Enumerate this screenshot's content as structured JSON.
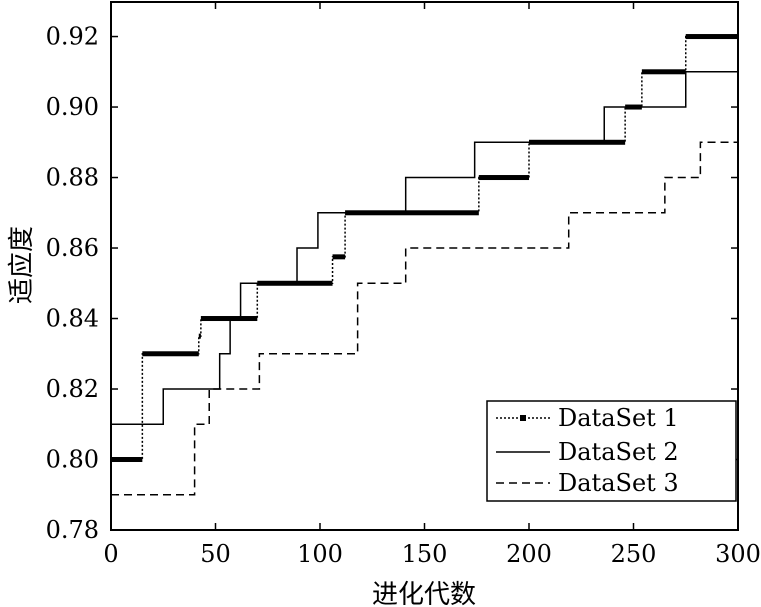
{
  "chart_data": {
    "type": "line",
    "title": "",
    "xlabel": "进化代数",
    "ylabel": "适应度",
    "xlim": [
      0,
      300
    ],
    "ylim": [
      0.78,
      0.93
    ],
    "xticks": [
      0,
      50,
      100,
      150,
      200,
      250,
      300
    ],
    "xtick_labels": [
      "0",
      "50",
      "100",
      "150",
      "200",
      "250",
      "300"
    ],
    "yticks": [
      0.78,
      0.8,
      0.82,
      0.84,
      0.86,
      0.88,
      0.9,
      0.92
    ],
    "ytick_labels": [
      "0.78",
      "0.80",
      "0.82",
      "0.84",
      "0.86",
      "0.88",
      "0.90",
      "0.92"
    ],
    "grid": false,
    "legend_position": "bottom-right",
    "series": [
      {
        "name": "DataSet 1",
        "style": "dotted-square-markers",
        "steps": [
          [
            0,
            0.8
          ],
          [
            15,
            0.83
          ],
          [
            42,
            0.835
          ],
          [
            43,
            0.84
          ],
          [
            70,
            0.85
          ],
          [
            106,
            0.8575
          ],
          [
            112,
            0.87
          ],
          [
            176,
            0.88
          ],
          [
            200,
            0.89
          ],
          [
            246,
            0.9
          ],
          [
            254,
            0.91
          ],
          [
            275,
            0.92
          ]
        ],
        "x_end": 300
      },
      {
        "name": "DataSet 2",
        "style": "solid",
        "steps": [
          [
            0,
            0.81
          ],
          [
            25,
            0.82
          ],
          [
            52,
            0.83
          ],
          [
            57,
            0.84
          ],
          [
            62,
            0.85
          ],
          [
            89,
            0.86
          ],
          [
            99,
            0.87
          ],
          [
            141,
            0.88
          ],
          [
            174,
            0.89
          ],
          [
            236,
            0.9
          ],
          [
            275,
            0.91
          ]
        ],
        "x_end": 300
      },
      {
        "name": "DataSet 3",
        "style": "dashed",
        "steps": [
          [
            0,
            0.79
          ],
          [
            40,
            0.81
          ],
          [
            47,
            0.82
          ],
          [
            71,
            0.83
          ],
          [
            118,
            0.85
          ],
          [
            141,
            0.86
          ],
          [
            219,
            0.87
          ],
          [
            265,
            0.88
          ],
          [
            282,
            0.89
          ]
        ],
        "x_end": 300
      }
    ]
  }
}
